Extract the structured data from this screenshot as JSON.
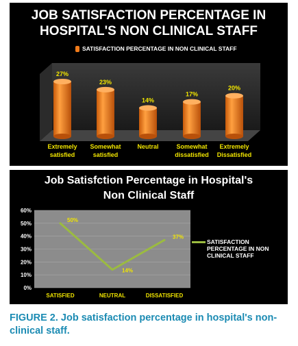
{
  "chart_data": [
    {
      "type": "bar",
      "title_line1": "JOB SATISFACTION PERCENTAGE IN",
      "title_line2": "HOSPITAL'S NON CLINICAL  STAFF",
      "legend": "SATISFACTION PERCENTAGE IN NON CLINICAL  STAFF",
      "categories": [
        {
          "line1": "Extremely",
          "line2": "satisfied"
        },
        {
          "line1": "Somewhat",
          "line2": "satisfied"
        },
        {
          "line1": "Neutral",
          "line2": ""
        },
        {
          "line1": "Somewhat",
          "line2": "dissatisfied"
        },
        {
          "line1": "Extremely",
          "line2": "Dissatisfied"
        }
      ],
      "values": [
        27,
        23,
        14,
        17,
        20
      ],
      "data_labels": [
        "27%",
        "23%",
        "14%",
        "17%",
        "20%"
      ],
      "ylim": [
        0,
        30
      ],
      "bar_color": "#f07b1a",
      "label_color": "#f2e600"
    },
    {
      "type": "line",
      "title_line1": "Job Satisfction Percentage  in Hospital's",
      "title_line2": "Non Clinical Staff",
      "categories": [
        "SATISFIED",
        "NEUTRAL",
        "DISSATISFIED"
      ],
      "series": [
        {
          "name": "SATISFACTION PERCENTAGE IN NON CLINICAL  STAFF",
          "values": [
            50,
            14,
            37
          ]
        }
      ],
      "data_labels": [
        "50%",
        "14%",
        "37%"
      ],
      "y_ticks": [
        "0%",
        "10%",
        "20%",
        "30%",
        "40%",
        "50%",
        "60%"
      ],
      "ylim": [
        0,
        60
      ],
      "line_color": "#9bbb40",
      "label_color": "#f2e600"
    }
  ],
  "caption": "FIGURE 2.  Job satisfaction percentage in hospital's non-clinical  staff."
}
